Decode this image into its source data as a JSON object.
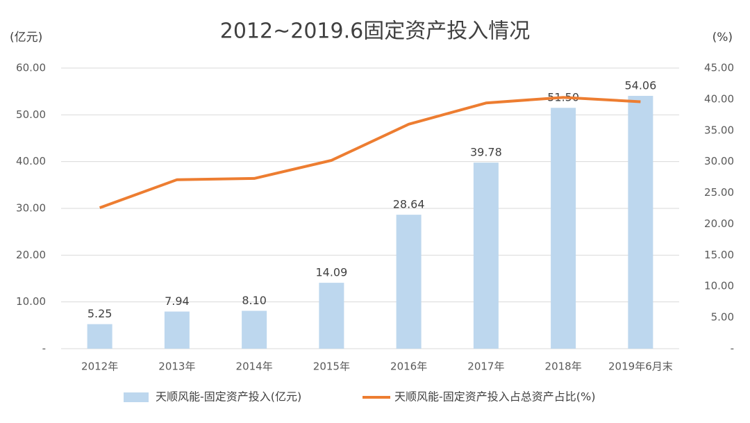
{
  "chart_data": {
    "type": "bar",
    "title": "2012~2019.6固定资产投入情况",
    "y_label": "(亿元)",
    "y2_label": "(%)",
    "categories": [
      "2012年",
      "2013年",
      "2014年",
      "2015年",
      "2016年",
      "2017年",
      "2018年",
      "2019年6月末"
    ],
    "series": [
      {
        "name": "天顺风能-固定资产投入(亿元)",
        "color": "#bdd7ee",
        "type": "bar",
        "values": [
          5.25,
          7.94,
          8.1,
          14.09,
          28.64,
          39.78,
          51.5,
          54.06
        ],
        "value_labels": [
          "5.25",
          "7.94",
          "8.10",
          "14.09",
          "28.64",
          "39.78",
          "51.50",
          "54.06"
        ]
      },
      {
        "name": "天顺风能-固定资产投入占总资产占比(%)",
        "color": "#ed7d31",
        "type": "line",
        "axis": "y2",
        "values": [
          22.6,
          27.1,
          27.3,
          30.2,
          36.0,
          39.4,
          40.3,
          39.6
        ]
      }
    ],
    "ylim": [
      0,
      60
    ],
    "yticks": [
      {
        "value": 0,
        "label": "-"
      },
      {
        "value": 10,
        "label": "10.00"
      },
      {
        "value": 20,
        "label": "20.00"
      },
      {
        "value": 30,
        "label": "30.00"
      },
      {
        "value": 40,
        "label": "40.00"
      },
      {
        "value": 50,
        "label": "50.00"
      },
      {
        "value": 60,
        "label": "60.00"
      }
    ],
    "y2lim": [
      0,
      45
    ],
    "y2ticks": [
      {
        "value": 0,
        "label": "-"
      },
      {
        "value": 5,
        "label": "5.00"
      },
      {
        "value": 10,
        "label": "10.00"
      },
      {
        "value": 15,
        "label": "15.00"
      },
      {
        "value": 20,
        "label": "20.00"
      },
      {
        "value": 25,
        "label": "25.00"
      },
      {
        "value": 30,
        "label": "30.00"
      },
      {
        "value": 35,
        "label": "35.00"
      },
      {
        "value": 40,
        "label": "40.00"
      },
      {
        "value": 45,
        "label": "45.00"
      }
    ],
    "grid": true,
    "legend": "bottom"
  }
}
